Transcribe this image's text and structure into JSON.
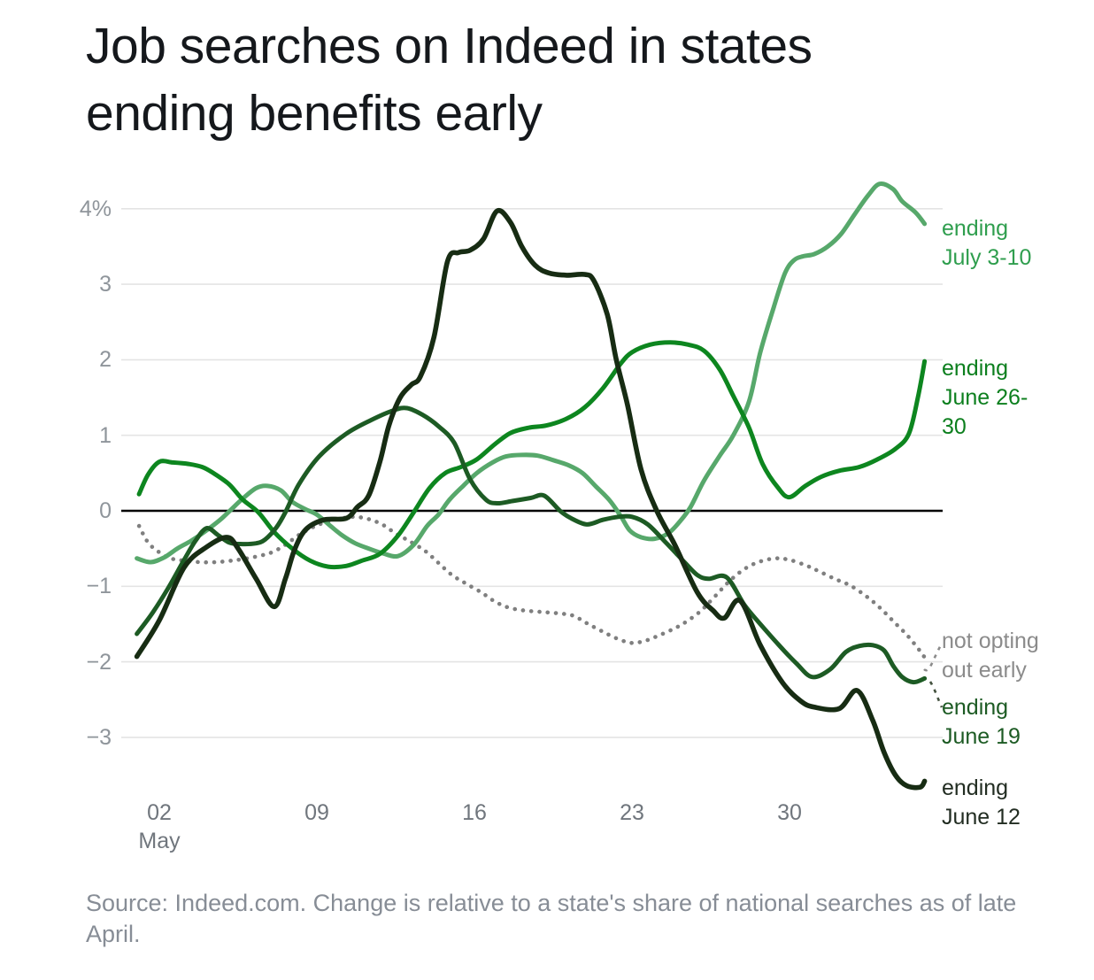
{
  "title": {
    "line1": "Job searches on Indeed in states",
    "line2": "ending benefits early"
  },
  "source": "Source: Indeed.com. Change is relative to a state's share of national searches as of late April.",
  "colors": {
    "zero_line": "#000000",
    "gridline": "#e4e4e4",
    "leader_gray": "#8b8b8b",
    "leader_dark": "#44523f"
  },
  "chart_data": {
    "type": "line",
    "title": "Job searches on Indeed in states ending benefits early",
    "x_axis": {
      "month_label": "May",
      "tick_labels": [
        "02",
        "09",
        "16",
        "23",
        "30"
      ],
      "tick_days_from_may1": [
        1,
        8,
        15,
        22,
        29
      ],
      "domain_days_from_may1": [
        0,
        35
      ]
    },
    "y_axis": {
      "unit": "percent change",
      "tick_labels": [
        "4%",
        "3",
        "2",
        "1",
        "0",
        "−1",
        "−2",
        "−3"
      ],
      "tick_values": [
        4,
        3,
        2,
        1,
        0,
        -1,
        -2,
        -3
      ],
      "range": [
        -3.9,
        4.5
      ],
      "grid": true
    },
    "legend_position": "right-of-line-ends",
    "series": [
      {
        "name": "not opting out early",
        "label_lines": [
          "not opting",
          "out early",
          ""
        ],
        "color": "#7f7f7f",
        "style": "dotted",
        "points": [
          [
            0.1,
            -0.2
          ],
          [
            0.5,
            -0.42
          ],
          [
            1,
            -0.55
          ],
          [
            1.5,
            -0.63
          ],
          [
            2.1,
            -0.66
          ],
          [
            2.8,
            -0.68
          ],
          [
            3.5,
            -0.68
          ],
          [
            4.2,
            -0.66
          ],
          [
            4.7,
            -0.64
          ],
          [
            5.4,
            -0.6
          ],
          [
            6,
            -0.55
          ],
          [
            6.6,
            -0.45
          ],
          [
            7.2,
            -0.32
          ],
          [
            7.8,
            -0.22
          ],
          [
            8.4,
            -0.15
          ],
          [
            9.1,
            -0.1
          ],
          [
            9.7,
            -0.08
          ],
          [
            10.3,
            -0.11
          ],
          [
            10.9,
            -0.18
          ],
          [
            11.5,
            -0.3
          ],
          [
            12.1,
            -0.4
          ],
          [
            12.8,
            -0.53
          ],
          [
            13.4,
            -0.69
          ],
          [
            14,
            -0.85
          ],
          [
            14.6,
            -0.96
          ],
          [
            15.3,
            -1.08
          ],
          [
            15.9,
            -1.2
          ],
          [
            16.5,
            -1.28
          ],
          [
            17.2,
            -1.32
          ],
          [
            18,
            -1.34
          ],
          [
            18.8,
            -1.36
          ],
          [
            19.4,
            -1.39
          ],
          [
            20,
            -1.49
          ],
          [
            20.7,
            -1.6
          ],
          [
            21.4,
            -1.7
          ],
          [
            22,
            -1.75
          ],
          [
            22.6,
            -1.72
          ],
          [
            23.2,
            -1.65
          ],
          [
            23.8,
            -1.57
          ],
          [
            24.3,
            -1.49
          ],
          [
            25,
            -1.34
          ],
          [
            25.6,
            -1.16
          ],
          [
            26.3,
            -0.94
          ],
          [
            27,
            -0.77
          ],
          [
            27.7,
            -0.67
          ],
          [
            28.4,
            -0.63
          ],
          [
            29,
            -0.65
          ],
          [
            29.7,
            -0.72
          ],
          [
            30.3,
            -0.8
          ],
          [
            31,
            -0.9
          ],
          [
            31.7,
            -0.99
          ],
          [
            32.4,
            -1.13
          ],
          [
            33,
            -1.28
          ],
          [
            33.6,
            -1.46
          ],
          [
            34.2,
            -1.64
          ],
          [
            34.7,
            -1.82
          ],
          [
            35,
            -1.94
          ]
        ]
      },
      {
        "name": "ending July 3-10",
        "label_lines": [
          "ending",
          "July 3-10",
          ""
        ],
        "color": "#57a86b",
        "style": "solid",
        "points": [
          [
            0,
            -0.63
          ],
          [
            0.6,
            -0.68
          ],
          [
            1.2,
            -0.62
          ],
          [
            1.8,
            -0.5
          ],
          [
            2.4,
            -0.4
          ],
          [
            3,
            -0.28
          ],
          [
            3.7,
            -0.12
          ],
          [
            4.2,
            0.02
          ],
          [
            4.7,
            0.16
          ],
          [
            5.3,
            0.3
          ],
          [
            5.8,
            0.33
          ],
          [
            6.4,
            0.27
          ],
          [
            6.9,
            0.12
          ],
          [
            7.5,
            0.02
          ],
          [
            8,
            -0.05
          ],
          [
            8.6,
            -0.2
          ],
          [
            9.1,
            -0.32
          ],
          [
            9.7,
            -0.43
          ],
          [
            10.3,
            -0.5
          ],
          [
            10.9,
            -0.56
          ],
          [
            11.6,
            -0.6
          ],
          [
            12.3,
            -0.45
          ],
          [
            12.9,
            -0.2
          ],
          [
            13.4,
            -0.05
          ],
          [
            13.9,
            0.15
          ],
          [
            14.5,
            0.33
          ],
          [
            15.1,
            0.5
          ],
          [
            15.8,
            0.64
          ],
          [
            16.4,
            0.72
          ],
          [
            17.1,
            0.74
          ],
          [
            17.8,
            0.73
          ],
          [
            18.5,
            0.67
          ],
          [
            19.2,
            0.6
          ],
          [
            19.8,
            0.5
          ],
          [
            20.4,
            0.32
          ],
          [
            21,
            0.14
          ],
          [
            21.5,
            -0.07
          ],
          [
            21.9,
            -0.26
          ],
          [
            22.4,
            -0.35
          ],
          [
            23,
            -0.37
          ],
          [
            23.6,
            -0.3
          ],
          [
            24.1,
            -0.15
          ],
          [
            24.6,
            0.05
          ],
          [
            25.2,
            0.4
          ],
          [
            25.9,
            0.73
          ],
          [
            26.5,
            1.0
          ],
          [
            27.2,
            1.45
          ],
          [
            27.7,
            2.1
          ],
          [
            28.3,
            2.7
          ],
          [
            28.8,
            3.15
          ],
          [
            29.2,
            3.32
          ],
          [
            29.6,
            3.37
          ],
          [
            30.1,
            3.4
          ],
          [
            30.7,
            3.5
          ],
          [
            31.3,
            3.67
          ],
          [
            31.9,
            3.93
          ],
          [
            32.5,
            4.18
          ],
          [
            33,
            4.33
          ],
          [
            33.6,
            4.26
          ],
          [
            34,
            4.1
          ],
          [
            34.6,
            3.95
          ],
          [
            35,
            3.8
          ]
        ]
      },
      {
        "name": "ending June 26-30",
        "label_lines": [
          "ending",
          "June 26-",
          "30"
        ],
        "color": "#0d861f",
        "style": "solid",
        "points": [
          [
            0.1,
            0.22
          ],
          [
            0.5,
            0.48
          ],
          [
            1,
            0.65
          ],
          [
            1.6,
            0.64
          ],
          [
            2.3,
            0.62
          ],
          [
            2.9,
            0.58
          ],
          [
            3.4,
            0.5
          ],
          [
            4.1,
            0.35
          ],
          [
            4.7,
            0.15
          ],
          [
            5.4,
            -0.02
          ],
          [
            6.1,
            -0.28
          ],
          [
            6.9,
            -0.5
          ],
          [
            7.7,
            -0.66
          ],
          [
            8.5,
            -0.74
          ],
          [
            9.3,
            -0.73
          ],
          [
            10,
            -0.66
          ],
          [
            10.8,
            -0.57
          ],
          [
            11.6,
            -0.33
          ],
          [
            12.3,
            -0.02
          ],
          [
            13,
            0.3
          ],
          [
            13.7,
            0.5
          ],
          [
            14.4,
            0.58
          ],
          [
            15.1,
            0.68
          ],
          [
            15.9,
            0.88
          ],
          [
            16.6,
            1.03
          ],
          [
            17.4,
            1.1
          ],
          [
            18.2,
            1.13
          ],
          [
            19.1,
            1.22
          ],
          [
            19.9,
            1.37
          ],
          [
            20.7,
            1.62
          ],
          [
            21.5,
            1.95
          ],
          [
            22,
            2.1
          ],
          [
            22.8,
            2.2
          ],
          [
            23.7,
            2.23
          ],
          [
            24.5,
            2.2
          ],
          [
            25.2,
            2.12
          ],
          [
            25.9,
            1.87
          ],
          [
            26.5,
            1.52
          ],
          [
            27.2,
            1.1
          ],
          [
            27.8,
            0.62
          ],
          [
            28.5,
            0.3
          ],
          [
            29,
            0.18
          ],
          [
            29.7,
            0.33
          ],
          [
            30.4,
            0.45
          ],
          [
            31.2,
            0.53
          ],
          [
            32.1,
            0.58
          ],
          [
            32.9,
            0.68
          ],
          [
            33.7,
            0.82
          ],
          [
            34.3,
            1.02
          ],
          [
            34.7,
            1.5
          ],
          [
            35,
            1.98
          ]
        ]
      },
      {
        "name": "ending June 19",
        "label_lines": [
          "ending",
          "June 19",
          ""
        ],
        "color": "#1d5b24",
        "style": "solid",
        "points": [
          [
            0,
            -1.63
          ],
          [
            0.7,
            -1.35
          ],
          [
            1.4,
            -1.02
          ],
          [
            2.1,
            -0.65
          ],
          [
            2.6,
            -0.4
          ],
          [
            3.1,
            -0.23
          ],
          [
            3.6,
            -0.32
          ],
          [
            4.1,
            -0.42
          ],
          [
            4.6,
            -0.44
          ],
          [
            5.3,
            -0.43
          ],
          [
            5.7,
            -0.38
          ],
          [
            6.2,
            -0.22
          ],
          [
            6.6,
            -0.02
          ],
          [
            7.2,
            0.35
          ],
          [
            8.1,
            0.72
          ],
          [
            9.3,
            1.02
          ],
          [
            10.4,
            1.2
          ],
          [
            11.4,
            1.33
          ],
          [
            12,
            1.36
          ],
          [
            12.7,
            1.27
          ],
          [
            13.4,
            1.12
          ],
          [
            14.1,
            0.9
          ],
          [
            14.8,
            0.42
          ],
          [
            15.5,
            0.15
          ],
          [
            16,
            0.1
          ],
          [
            16.7,
            0.13
          ],
          [
            17.5,
            0.17
          ],
          [
            18.1,
            0.2
          ],
          [
            18.8,
            0.0
          ],
          [
            19.3,
            -0.1
          ],
          [
            20,
            -0.18
          ],
          [
            20.7,
            -0.12
          ],
          [
            21.4,
            -0.08
          ],
          [
            22,
            -0.08
          ],
          [
            22.7,
            -0.18
          ],
          [
            23.5,
            -0.42
          ],
          [
            24.3,
            -0.67
          ],
          [
            24.9,
            -0.85
          ],
          [
            25.4,
            -0.9
          ],
          [
            26.2,
            -0.88
          ],
          [
            27,
            -1.25
          ],
          [
            27.7,
            -1.5
          ],
          [
            28.5,
            -1.77
          ],
          [
            29.3,
            -2.02
          ],
          [
            30,
            -2.2
          ],
          [
            30.8,
            -2.1
          ],
          [
            31.5,
            -1.87
          ],
          [
            32.1,
            -1.79
          ],
          [
            32.7,
            -1.78
          ],
          [
            33.2,
            -1.85
          ],
          [
            33.6,
            -2.05
          ],
          [
            34,
            -2.2
          ],
          [
            34.5,
            -2.27
          ],
          [
            35,
            -2.22
          ]
        ]
      },
      {
        "name": "ending June 12",
        "label_lines": [
          "ending",
          "June 12",
          ""
        ],
        "color": "#172c13",
        "style": "solid",
        "points": [
          [
            0,
            -1.93
          ],
          [
            1,
            -1.45
          ],
          [
            2.1,
            -0.75
          ],
          [
            3.1,
            -0.48
          ],
          [
            4,
            -0.35
          ],
          [
            4.5,
            -0.5
          ],
          [
            5.3,
            -0.9
          ],
          [
            6.1,
            -1.27
          ],
          [
            6.6,
            -0.9
          ],
          [
            7,
            -0.52
          ],
          [
            7.5,
            -0.25
          ],
          [
            8.3,
            -0.12
          ],
          [
            9.3,
            -0.1
          ],
          [
            9.8,
            0.05
          ],
          [
            10.3,
            0.2
          ],
          [
            10.8,
            0.65
          ],
          [
            11.2,
            1.13
          ],
          [
            11.7,
            1.5
          ],
          [
            12.2,
            1.67
          ],
          [
            12.6,
            1.78
          ],
          [
            13.2,
            2.3
          ],
          [
            13.8,
            3.3
          ],
          [
            14.3,
            3.42
          ],
          [
            14.8,
            3.45
          ],
          [
            15.4,
            3.6
          ],
          [
            16,
            3.97
          ],
          [
            16.6,
            3.82
          ],
          [
            17.1,
            3.5
          ],
          [
            17.7,
            3.25
          ],
          [
            18.3,
            3.15
          ],
          [
            19.1,
            3.12
          ],
          [
            19.9,
            3.13
          ],
          [
            20.3,
            3.05
          ],
          [
            20.9,
            2.6
          ],
          [
            21.3,
            2.0
          ],
          [
            21.8,
            1.4
          ],
          [
            22.4,
            0.55
          ],
          [
            23.1,
            0
          ],
          [
            23.9,
            -0.45
          ],
          [
            24.9,
            -1.08
          ],
          [
            25.6,
            -1.32
          ],
          [
            26.1,
            -1.42
          ],
          [
            26.8,
            -1.19
          ],
          [
            27.7,
            -1.78
          ],
          [
            28.7,
            -2.28
          ],
          [
            29.5,
            -2.52
          ],
          [
            30.1,
            -2.6
          ],
          [
            31.2,
            -2.62
          ],
          [
            32,
            -2.38
          ],
          [
            32.7,
            -2.78
          ],
          [
            33.2,
            -3.2
          ],
          [
            33.7,
            -3.5
          ],
          [
            34.2,
            -3.64
          ],
          [
            34.8,
            -3.66
          ],
          [
            35,
            -3.58
          ]
        ]
      }
    ]
  }
}
